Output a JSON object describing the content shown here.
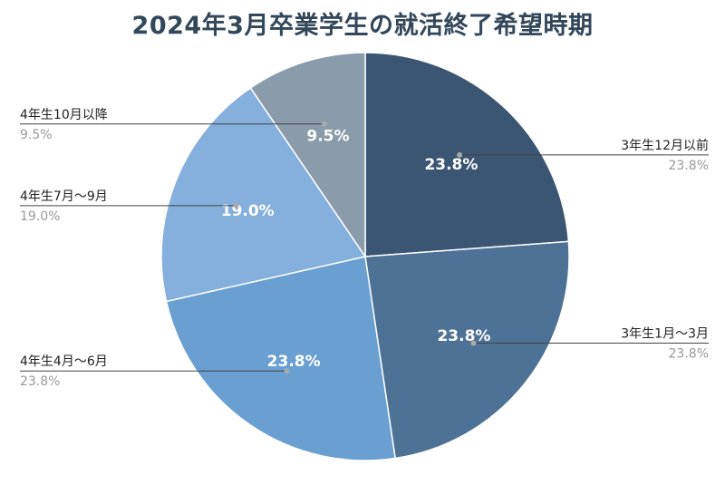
{
  "chart_data": {
    "type": "pie",
    "title": "2024年3月卒業学生の就活終了希望時期",
    "slices": [
      {
        "label": "3年生12月以前",
        "value": 23.8,
        "display": "23.8%",
        "legend_value": "23.8%",
        "color": "#3b5673",
        "label_side": "right"
      },
      {
        "label": "3年生1月～3月",
        "value": 23.8,
        "display": "23.8%",
        "legend_value": "23.8%",
        "color": "#4e7296",
        "label_side": "right"
      },
      {
        "label": "4年生4月～6月",
        "value": 23.8,
        "display": "23.8%",
        "legend_value": "23.8%",
        "color": "#6a9fd2",
        "label_side": "left"
      },
      {
        "label": "4年生7月～9月",
        "value": 19.0,
        "display": "19.0%",
        "legend_value": "19.0%",
        "color": "#85afdc",
        "label_side": "left"
      },
      {
        "label": "4年生10月以降",
        "value": 9.5,
        "display": "9.5%",
        "legend_value": "9.5%",
        "color": "#8a9bab",
        "label_side": "left"
      }
    ],
    "start_angle_deg": 0,
    "direction": "clockwise",
    "legend": "external callouts"
  }
}
